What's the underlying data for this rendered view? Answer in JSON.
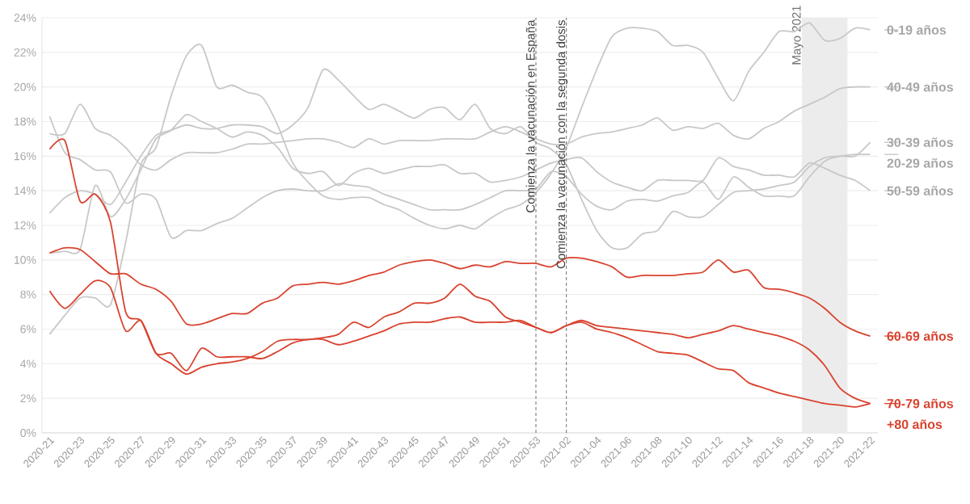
{
  "chart_data": {
    "type": "line",
    "categories": [
      "2020-21",
      null,
      "2020-23",
      null,
      "2020-25",
      null,
      "2020-27",
      null,
      "2020-29",
      null,
      "2020-31",
      null,
      "2020-33",
      null,
      "2020-35",
      null,
      "2020-37",
      null,
      "2020-39",
      null,
      "2020-41",
      null,
      "2020-43",
      null,
      "2020-45",
      null,
      "2020-47",
      null,
      "2020-49",
      null,
      "2020-51",
      null,
      "2020-53",
      null,
      "2021-02",
      null,
      "2021-04",
      null,
      "2021-06",
      null,
      "2021-08",
      null,
      "2021-10",
      null,
      "2021-12",
      null,
      "2021-14",
      null,
      "2021-16",
      null,
      "2021-18",
      null,
      "2021-20",
      null,
      "2021-22"
    ],
    "ylim": [
      0,
      24
    ],
    "yticks": [
      {
        "value": 0,
        "label": "0%"
      },
      {
        "value": 2,
        "label": "2%"
      },
      {
        "value": 4,
        "label": "4%"
      },
      {
        "value": 6,
        "label": "6%"
      },
      {
        "value": 8,
        "label": "8%"
      },
      {
        "value": 10,
        "label": "10%"
      },
      {
        "value": 12,
        "label": "12%"
      },
      {
        "value": 14,
        "label": "14%"
      },
      {
        "value": 16,
        "label": "16%"
      },
      {
        "value": 18,
        "label": "18%"
      },
      {
        "value": 20,
        "label": "20%"
      },
      {
        "value": 22,
        "label": "22%"
      },
      {
        "value": 24,
        "label": "24%"
      }
    ],
    "grid": "y",
    "legend": "right",
    "line_style": "solid",
    "series": [
      {
        "name": "0-19 años",
        "color": "#c8c8c8",
        "values": [
          5.7,
          6.8,
          7.8,
          7.8,
          7.4,
          11.0,
          15.5,
          16.5,
          19.5,
          21.8,
          22.4,
          20.0,
          20.1,
          19.7,
          19.4,
          17.8,
          15.6,
          14.5,
          13.7,
          13.5,
          13.6,
          13.6,
          13.2,
          12.9,
          12.4,
          12.0,
          11.8,
          12.0,
          11.8,
          12.4,
          12.9,
          13.2,
          13.9,
          15.0,
          16.5,
          18.8,
          21.0,
          22.9,
          23.4,
          23.4,
          23.2,
          22.4,
          22.4,
          22.0,
          20.5,
          19.2,
          20.9,
          22.0,
          23.2,
          23.2,
          23.7,
          22.7,
          22.8,
          23.4,
          23.3
        ]
      },
      {
        "name": "40-49 años",
        "color": "#c8c8c8",
        "values": [
          17.3,
          17.3,
          19.0,
          17.6,
          17.2,
          16.5,
          15.5,
          15.2,
          15.8,
          16.2,
          16.2,
          16.2,
          16.4,
          16.7,
          16.7,
          16.8,
          16.9,
          17.0,
          17.0,
          16.8,
          16.5,
          17.0,
          16.7,
          16.9,
          16.9,
          16.9,
          17.0,
          17.0,
          17.0,
          17.4,
          17.7,
          17.4,
          17.0,
          16.7,
          16.7,
          17.1,
          17.3,
          17.4,
          17.6,
          17.8,
          18.2,
          17.5,
          17.7,
          17.6,
          17.9,
          17.2,
          17.0,
          17.6,
          18.0,
          18.6,
          19.0,
          19.4,
          19.9,
          20.0,
          20.0
        ]
      },
      {
        "name": "30-39 años",
        "color": "#c8c8c8",
        "values": [
          18.3,
          16.2,
          15.8,
          15.2,
          15.1,
          13.3,
          13.8,
          13.5,
          11.3,
          11.7,
          11.7,
          12.1,
          12.4,
          13.0,
          13.6,
          14.0,
          14.1,
          14.0,
          14.0,
          14.4,
          14.3,
          14.2,
          13.8,
          13.5,
          13.2,
          12.9,
          12.9,
          12.9,
          13.2,
          13.6,
          14.0,
          14.0,
          14.1,
          15.1,
          14.8,
          13.8,
          13.1,
          12.9,
          13.4,
          13.5,
          13.4,
          13.7,
          13.9,
          14.5,
          13.5,
          14.8,
          14.2,
          13.7,
          13.7,
          13.7,
          14.8,
          15.7,
          16.0,
          16.0,
          16.8
        ]
      },
      {
        "name": "20-29 años",
        "color": "#c8c8c8",
        "values": [
          12.7,
          13.6,
          14.0,
          13.8,
          13.2,
          14.5,
          16.0,
          17.2,
          17.5,
          17.8,
          17.6,
          17.6,
          17.8,
          17.8,
          17.7,
          17.3,
          17.8,
          18.8,
          21.0,
          20.4,
          19.5,
          18.7,
          19.0,
          18.6,
          18.2,
          18.7,
          18.8,
          18.1,
          19.0,
          17.6,
          17.3,
          17.7,
          16.8,
          16.4,
          15.5,
          13.5,
          11.7,
          10.7,
          10.7,
          11.5,
          11.7,
          12.8,
          12.5,
          12.5,
          13.2,
          13.9,
          14.0,
          14.1,
          14.3,
          14.5,
          15.4,
          15.9,
          16.0,
          16.1,
          16.1
        ]
      },
      {
        "name": "50-59 años",
        "color": "#c8c8c8",
        "values": [
          10.4,
          10.5,
          10.6,
          14.3,
          12.5,
          13.5,
          15.2,
          17.0,
          17.5,
          18.4,
          18.0,
          17.6,
          17.1,
          17.4,
          17.2,
          16.5,
          15.3,
          15.0,
          15.1,
          14.3,
          15.0,
          15.3,
          15.0,
          15.2,
          15.4,
          15.4,
          15.5,
          15.0,
          15.0,
          14.5,
          14.6,
          14.8,
          15.2,
          15.6,
          15.8,
          15.9,
          15.1,
          14.5,
          14.2,
          14.0,
          14.6,
          14.6,
          14.6,
          14.6,
          15.9,
          15.4,
          15.2,
          14.9,
          14.9,
          14.8,
          15.6,
          15.3,
          14.9,
          14.6,
          14.0
        ]
      },
      {
        "name": "60-69 años",
        "color": "#d9432f",
        "values": [
          10.4,
          10.7,
          10.6,
          9.9,
          9.2,
          9.2,
          8.6,
          8.3,
          7.6,
          6.3,
          6.3,
          6.6,
          6.9,
          6.9,
          7.5,
          7.8,
          8.5,
          8.6,
          8.7,
          8.6,
          8.8,
          9.1,
          9.3,
          9.7,
          9.9,
          10.0,
          9.8,
          9.5,
          9.7,
          9.6,
          9.9,
          9.8,
          9.8,
          9.6,
          10.1,
          10.1,
          9.9,
          9.6,
          9.0,
          9.1,
          9.1,
          9.1,
          9.2,
          9.3,
          10.0,
          9.3,
          9.4,
          8.4,
          8.3,
          8.1,
          7.8,
          7.2,
          6.4,
          5.9,
          5.6
        ]
      },
      {
        "name": "70-79 años",
        "color": "#d9432f",
        "values": [
          8.2,
          7.2,
          8.0,
          8.8,
          8.4,
          5.9,
          6.5,
          4.6,
          4.0,
          3.4,
          3.8,
          4.0,
          4.1,
          4.3,
          4.7,
          5.3,
          5.4,
          5.4,
          5.5,
          5.7,
          6.4,
          6.1,
          6.7,
          7.0,
          7.5,
          7.5,
          7.8,
          8.6,
          7.9,
          7.6,
          6.7,
          6.4,
          6.1,
          5.8,
          6.2,
          6.5,
          6.2,
          6.1,
          6.0,
          5.9,
          5.8,
          5.7,
          5.5,
          5.7,
          5.9,
          6.2,
          6.0,
          5.8,
          5.6,
          5.3,
          4.8,
          3.9,
          2.6,
          2.0,
          1.7
        ]
      },
      {
        "name": "+80 años",
        "color": "#d9432f",
        "values": [
          16.4,
          16.9,
          13.4,
          13.8,
          12.2,
          7.0,
          6.5,
          4.6,
          4.6,
          3.6,
          4.9,
          4.4,
          4.4,
          4.4,
          4.3,
          4.7,
          5.2,
          5.4,
          5.4,
          5.1,
          5.3,
          5.6,
          5.9,
          6.3,
          6.4,
          6.4,
          6.6,
          6.7,
          6.4,
          6.4,
          6.4,
          6.5,
          6.1,
          5.8,
          6.2,
          6.4,
          6.0,
          5.8,
          5.5,
          5.1,
          4.7,
          4.6,
          4.5,
          4.1,
          3.7,
          3.6,
          2.9,
          2.6,
          2.3,
          2.1,
          1.9,
          1.7,
          1.6,
          1.5,
          1.7
        ]
      }
    ],
    "ref_lines": [
      {
        "axis": "x",
        "value": "2020-53",
        "label": "Comienza la vacunación en España",
        "color": "#888888",
        "line_style": "dashed"
      },
      {
        "axis": "x",
        "value": "2021-02",
        "label": "Comienza la vacunación con la segunda dosis",
        "color": "#888888",
        "line_style": "dashed"
      }
    ],
    "bands": [
      {
        "axis": "x",
        "from": "2021-18",
        "to": "2021-20",
        "label": "Mayo 2021",
        "color": "#ececec"
      }
    ]
  }
}
